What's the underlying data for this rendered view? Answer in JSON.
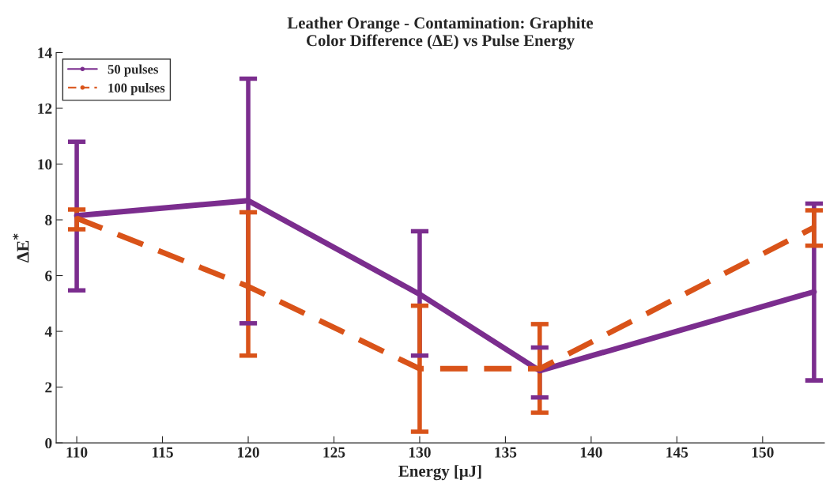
{
  "chart_data": {
    "type": "line",
    "title": "Leather Orange - Contamination: Graphite\nColor Difference (∆E) vs Pulse Energy",
    "xlabel": "Energy [μJ]",
    "ylabel": "∆E$^{*}$",
    "xlim": [
      108.8,
      153.6
    ],
    "xticks": [
      110,
      115,
      120,
      125,
      130,
      135,
      140,
      145,
      150
    ],
    "ylim": [
      0,
      14
    ],
    "yticks": [
      0,
      2,
      4,
      6,
      8,
      10,
      12,
      14
    ],
    "grid": false,
    "legend": "top left",
    "marker": "circle",
    "series": [
      {
        "name": "50 pulses",
        "color": "#7b2d8e",
        "line_style": "solid",
        "x": [
          110,
          120,
          130,
          137,
          153
        ],
        "values": [
          8.15,
          8.69,
          5.33,
          2.59,
          5.42
        ],
        "errors": [
          [
            5.47,
            10.8
          ],
          [
            4.29,
            13.06
          ],
          [
            3.13,
            7.59
          ],
          [
            1.63,
            3.42
          ],
          [
            2.24,
            8.58
          ]
        ]
      },
      {
        "name": "100 pulses",
        "color": "#d95319",
        "line_style": "dashed",
        "x": [
          110,
          120,
          130,
          137,
          153
        ],
        "values": [
          8.06,
          5.61,
          2.66,
          2.66,
          7.73
        ],
        "errors": [
          [
            7.66,
            8.37
          ],
          [
            3.13,
            8.27
          ],
          [
            0.4,
            4.92
          ],
          [
            1.08,
            4.26
          ],
          [
            7.07,
            8.34
          ]
        ]
      }
    ]
  }
}
